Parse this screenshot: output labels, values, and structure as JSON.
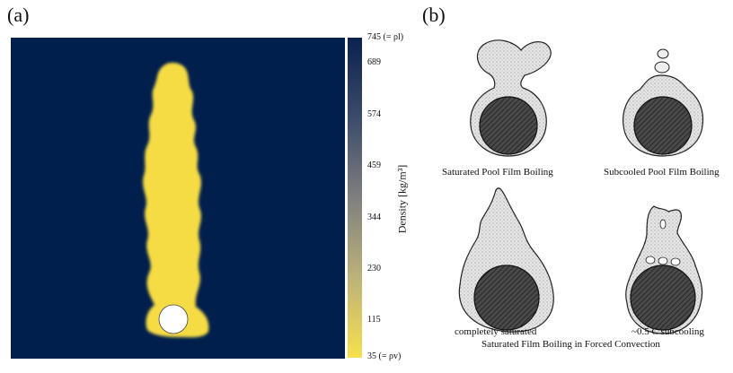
{
  "panel_a": {
    "label": "(a)",
    "colorbar": {
      "title": "Density [kg/m³]",
      "ticks": [
        "745 (= ρl)",
        "689",
        "574",
        "459",
        "344",
        "230",
        "115",
        "35 (= ρv)"
      ],
      "range": [
        35,
        745
      ],
      "colors": {
        "top": "#0a2150",
        "bottom": "#f7e04b"
      }
    },
    "colors": {
      "background": "#001f4d",
      "vapor": "#f5dc44",
      "cylinder": "#ffffff"
    }
  },
  "panel_b": {
    "label": "(b)",
    "captions": {
      "saturated_pool": "Saturated Pool Film Boiling",
      "subcooled_pool": "Subcooled Pool Film Boiling",
      "completely_saturated": "completely saturated",
      "subcooling": "~0.5 C subcooling",
      "forced": "Saturated Film Boiling in Forced Convection"
    }
  }
}
